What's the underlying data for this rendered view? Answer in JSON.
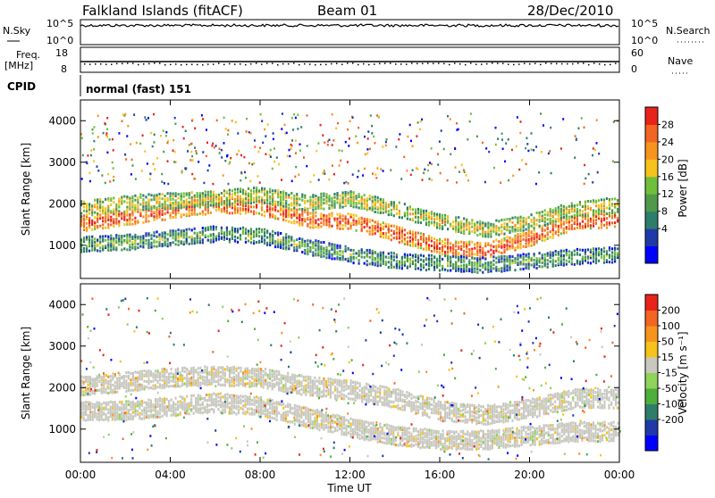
{
  "header": {
    "station": "Falkland Islands (fitACF)",
    "beam": "Beam 01",
    "date": "28/Dec/2010"
  },
  "strips": {
    "nsky": {
      "label": "N.Sky",
      "ticks": [
        "10^5",
        "10^0"
      ]
    },
    "nsearch": {
      "label": "N.Search",
      "ticks": [
        "10^5",
        "10^0"
      ]
    },
    "freq": {
      "label": "Freq.",
      "unit": "[MHz]",
      "ticks": [
        "18",
        "8"
      ]
    },
    "nave": {
      "label": "Nave",
      "ticks": [
        "60",
        "0"
      ]
    },
    "cpid": {
      "label": "CPID",
      "value": "normal (fast) 151"
    }
  },
  "colors": {
    "power": [
      "#0000ff",
      "#1f3aa8",
      "#2e7d6b",
      "#4f9a4a",
      "#6fbf3a",
      "#f6c21c",
      "#f7941d",
      "#f26522",
      "#e8231c"
    ],
    "velocity": [
      "#e8231c",
      "#f26522",
      "#f7941d",
      "#f6c21c",
      "#c8c8c0",
      "#8fd35a",
      "#4fae3a",
      "#2e7d6b",
      "#1f3aa8",
      "#0000ff"
    ]
  },
  "colorbars": {
    "power": {
      "label": "Power [dB]",
      "ticks": [
        "28",
        "24",
        "20",
        "16",
        "12",
        "8",
        "4"
      ]
    },
    "velocity": {
      "label": "Velocity [m s⁻¹]",
      "ticks": [
        "200",
        "100",
        "50",
        "15",
        "-15",
        "-50",
        "-100",
        "-200"
      ]
    }
  },
  "axes": {
    "ylabel": "Slant Range [km]",
    "yticks": [
      "4000",
      "3000",
      "2000",
      "1000"
    ],
    "xticks": [
      "00:00",
      "04:00",
      "08:00",
      "12:00",
      "16:00",
      "20:00",
      "00:00"
    ],
    "xlabel": "Time UT"
  },
  "chart_data": [
    {
      "type": "heatmap",
      "name": "power",
      "x_unit": "hours UT",
      "xlim": [
        0,
        24
      ],
      "ylim": [
        200,
        4500
      ],
      "bands": [
        {
          "points": [
            [
              0,
              1550
            ],
            [
              2,
              1700
            ],
            [
              4,
              1850
            ],
            [
              6,
              2000
            ],
            [
              8,
              1950
            ],
            [
              10,
              1650
            ],
            [
              12,
              1600
            ],
            [
              14,
              1300
            ],
            [
              16,
              1000
            ],
            [
              18,
              900
            ],
            [
              20,
              1200
            ],
            [
              22,
              1600
            ],
            [
              24,
              1650
            ]
          ],
          "value_db": 26
        },
        {
          "points": [
            [
              0,
              1900
            ],
            [
              2,
              2050
            ],
            [
              4,
              2100
            ],
            [
              6,
              2150
            ],
            [
              8,
              2250
            ],
            [
              10,
              2050
            ],
            [
              12,
              2150
            ],
            [
              14,
              1900
            ],
            [
              16,
              1600
            ],
            [
              18,
              1400
            ],
            [
              20,
              1600
            ],
            [
              22,
              1900
            ],
            [
              24,
              2000
            ]
          ],
          "value_db": 18
        },
        {
          "points": [
            [
              0,
              1050
            ],
            [
              2,
              1100
            ],
            [
              4,
              1200
            ],
            [
              6,
              1300
            ],
            [
              8,
              1250
            ],
            [
              10,
              1000
            ],
            [
              12,
              800
            ],
            [
              14,
              650
            ],
            [
              16,
              600
            ],
            [
              18,
              550
            ],
            [
              20,
              650
            ],
            [
              22,
              750
            ],
            [
              24,
              800
            ]
          ],
          "value_db": 13
        }
      ]
    },
    {
      "type": "heatmap",
      "name": "velocity",
      "x_unit": "hours UT",
      "xlim": [
        0,
        24
      ],
      "ylim": [
        200,
        4500
      ],
      "dominant_bin": "-15 to 15",
      "bands": [
        {
          "points": [
            [
              0,
              2100
            ],
            [
              2,
              2200
            ],
            [
              4,
              2300
            ],
            [
              6,
              2350
            ],
            [
              8,
              2300
            ],
            [
              10,
              2100
            ],
            [
              12,
              2000
            ],
            [
              14,
              1800
            ],
            [
              16,
              1500
            ],
            [
              18,
              1400
            ],
            [
              20,
              1550
            ],
            [
              22,
              1800
            ],
            [
              24,
              1800
            ]
          ],
          "value_ms": 0
        },
        {
          "points": [
            [
              0,
              1500
            ],
            [
              2,
              1500
            ],
            [
              4,
              1600
            ],
            [
              6,
              1700
            ],
            [
              8,
              1600
            ],
            [
              10,
              1350
            ],
            [
              12,
              1100
            ],
            [
              14,
              900
            ],
            [
              16,
              800
            ],
            [
              18,
              800
            ],
            [
              20,
              900
            ],
            [
              22,
              1000
            ],
            [
              24,
              1000
            ]
          ],
          "value_ms": -5
        }
      ]
    }
  ]
}
